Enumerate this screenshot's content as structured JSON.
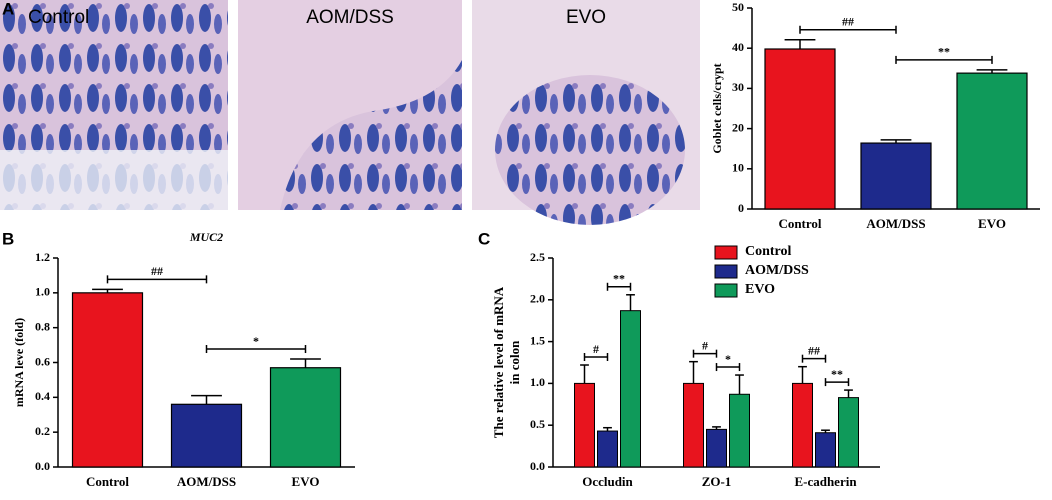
{
  "panels": [
    "A",
    "B",
    "C"
  ],
  "micrographs": [
    "Control",
    "AOM/DSS",
    "EVO"
  ],
  "chart_data": [
    {
      "type": "bar",
      "ylabel": "Goblet cells/crypt",
      "categories": [
        "Control",
        "AOM/DSS",
        "EVO"
      ],
      "values": [
        39.8,
        16.4,
        33.8
      ],
      "errors": [
        2.3,
        0.8,
        0.8
      ],
      "colors": [
        "#e8141e",
        "#1e2a8c",
        "#0f9a5a"
      ],
      "ylim": [
        0,
        50
      ],
      "yticks": [
        0,
        10,
        20,
        30,
        40,
        50
      ],
      "annotations": [
        "##",
        "**"
      ]
    },
    {
      "type": "bar",
      "title": "MUC2",
      "ylabel": "mRNA leve (fold)",
      "categories": [
        "Control",
        "AOM/DSS",
        "EVO"
      ],
      "values": [
        1.0,
        0.36,
        0.57
      ],
      "errors": [
        0.02,
        0.05,
        0.05
      ],
      "colors": [
        "#e8141e",
        "#1e2a8c",
        "#0f9a5a"
      ],
      "ylim": [
        0,
        1.2
      ],
      "yticks": [
        {
          "value": 0,
          "label": "0.0"
        },
        0.2,
        0.4,
        0.6,
        0.8,
        {
          "value": 1,
          "label": "1.0"
        },
        1.2
      ],
      "annotations": [
        "##",
        "*"
      ]
    },
    {
      "type": "grouped_bar",
      "ylabel": [
        "The relative level of  mRNA",
        "in colon"
      ],
      "categories": [
        "Occludin",
        "ZO-1",
        "E-cadherin"
      ],
      "series": [
        {
          "name": "Control",
          "color": "#e8141e",
          "values": [
            1.0,
            1.0,
            1.0
          ],
          "errors": [
            0.22,
            0.26,
            0.2
          ]
        },
        {
          "name": "AOM/DSS",
          "color": "#1e2a8c",
          "values": [
            0.43,
            0.45,
            0.41
          ],
          "errors": [
            0.04,
            0.03,
            0.03
          ]
        },
        {
          "name": "EVO",
          "color": "#0f9a5a",
          "values": [
            1.87,
            0.87,
            0.83
          ],
          "errors": [
            0.19,
            0.23,
            0.09
          ]
        }
      ],
      "ylim": [
        0,
        2.5
      ],
      "yticks": [
        {
          "value": 0,
          "label": "0.0"
        },
        0.5,
        {
          "value": 1,
          "label": "1.0"
        },
        1.5,
        {
          "value": 2,
          "label": "2.0"
        },
        2.5
      ],
      "legend": "upper right",
      "annotations": [
        [
          "#",
          "**"
        ],
        [
          "#",
          "*"
        ],
        [
          "##",
          "**"
        ]
      ]
    }
  ]
}
